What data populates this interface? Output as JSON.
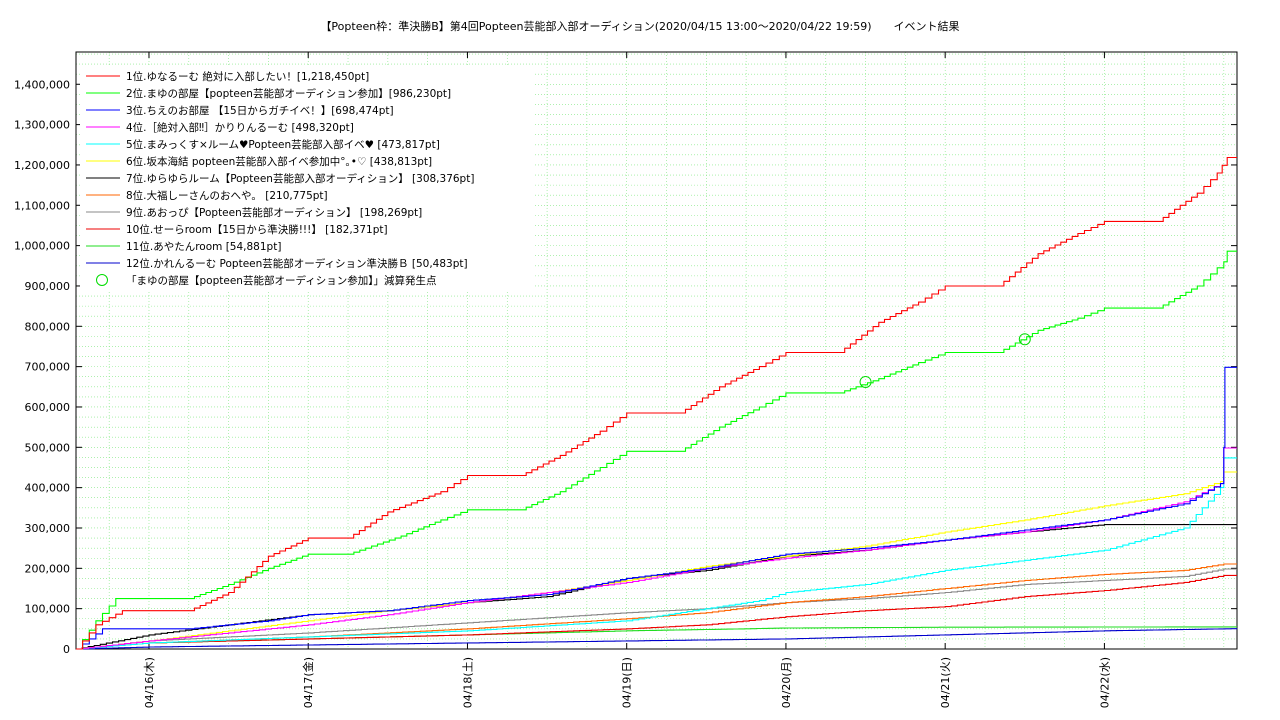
{
  "chart_data": {
    "type": "line",
    "title": "【Popteen枠：準決勝B】第4回Popteen芸能部入部オーディション(2020/04/15 13:00〜2020/04/22 19:59)　　イベント結果",
    "xlabel": "",
    "ylabel": "",
    "x_range": [
      "2020-04-15 13:00",
      "2020-04-22 19:59"
    ],
    "x_ticks": [
      {
        "t": "2020-04-16 00:00",
        "label": "04/16(木)"
      },
      {
        "t": "2020-04-17 00:00",
        "label": "04/17(金)"
      },
      {
        "t": "2020-04-18 00:00",
        "label": "04/18(土)"
      },
      {
        "t": "2020-04-19 00:00",
        "label": "04/19(日)"
      },
      {
        "t": "2020-04-20 00:00",
        "label": "04/20(月)"
      },
      {
        "t": "2020-04-21 00:00",
        "label": "04/21(火)"
      },
      {
        "t": "2020-04-22 00:00",
        "label": "04/22(水)"
      }
    ],
    "ylim": [
      0,
      1480000
    ],
    "y_ticks": [
      0,
      100000,
      200000,
      300000,
      400000,
      500000,
      600000,
      700000,
      800000,
      900000,
      1000000,
      1100000,
      1200000,
      1300000,
      1400000
    ],
    "y_tick_labels": [
      "0",
      "100,000",
      "200,000",
      "300,000",
      "400,000",
      "500,000",
      "600,000",
      "700,000",
      "800,000",
      "900,000",
      "1,000,000",
      "1,100,000",
      "1,200,000",
      "1,300,000",
      "1,400,000"
    ],
    "grid": true,
    "legend_position": "top-left",
    "series": [
      {
        "name": "1位.ゆなるーむ 絶対に入部したい！[1,218,450pt]",
        "color": "#ff0000",
        "points": [
          [
            "2020-04-15 13:00",
            0
          ],
          [
            "2020-04-15 16:00",
            60000
          ],
          [
            "2020-04-15 20:00",
            95000
          ],
          [
            "2020-04-16 06:00",
            95000
          ],
          [
            "2020-04-16 12:00",
            140000
          ],
          [
            "2020-04-16 18:00",
            230000
          ],
          [
            "2020-04-17 00:00",
            275000
          ],
          [
            "2020-04-17 06:00",
            275000
          ],
          [
            "2020-04-17 12:00",
            340000
          ],
          [
            "2020-04-17 20:00",
            390000
          ],
          [
            "2020-04-18 00:00",
            430000
          ],
          [
            "2020-04-18 08:00",
            430000
          ],
          [
            "2020-04-18 14:00",
            480000
          ],
          [
            "2020-04-18 20:00",
            540000
          ],
          [
            "2020-04-19 00:00",
            585000
          ],
          [
            "2020-04-19 08:00",
            585000
          ],
          [
            "2020-04-19 14:00",
            650000
          ],
          [
            "2020-04-19 20:00",
            700000
          ],
          [
            "2020-04-20 00:00",
            735000
          ],
          [
            "2020-04-20 08:00",
            735000
          ],
          [
            "2020-04-20 14:00",
            810000
          ],
          [
            "2020-04-20 20:00",
            860000
          ],
          [
            "2020-04-21 00:00",
            900000
          ],
          [
            "2020-04-21 08:00",
            900000
          ],
          [
            "2020-04-21 14:00",
            980000
          ],
          [
            "2020-04-21 20:00",
            1030000
          ],
          [
            "2020-04-22 00:00",
            1060000
          ],
          [
            "2020-04-22 08:00",
            1060000
          ],
          [
            "2020-04-22 14:00",
            1130000
          ],
          [
            "2020-04-22 17:00",
            1180000
          ],
          [
            "2020-04-22 18:30",
            1218450
          ],
          [
            "2020-04-22 19:59",
            1218450
          ]
        ]
      },
      {
        "name": "2位.まゆの部屋【popteen芸能部オーディション参加】[986,230pt]",
        "color": "#00ff00",
        "points": [
          [
            "2020-04-15 13:00",
            0
          ],
          [
            "2020-04-15 16:00",
            70000
          ],
          [
            "2020-04-15 19:00",
            125000
          ],
          [
            "2020-04-16 06:00",
            125000
          ],
          [
            "2020-04-16 12:00",
            160000
          ],
          [
            "2020-04-16 18:00",
            200000
          ],
          [
            "2020-04-17 00:00",
            235000
          ],
          [
            "2020-04-17 06:00",
            235000
          ],
          [
            "2020-04-17 14:00",
            280000
          ],
          [
            "2020-04-17 20:00",
            320000
          ],
          [
            "2020-04-18 00:00",
            345000
          ],
          [
            "2020-04-18 08:00",
            345000
          ],
          [
            "2020-04-18 14:00",
            390000
          ],
          [
            "2020-04-18 20:00",
            450000
          ],
          [
            "2020-04-19 00:00",
            490000
          ],
          [
            "2020-04-19 08:00",
            490000
          ],
          [
            "2020-04-19 14:00",
            550000
          ],
          [
            "2020-04-19 20:00",
            600000
          ],
          [
            "2020-04-20 00:00",
            635000
          ],
          [
            "2020-04-20 08:00",
            635000
          ],
          [
            "2020-04-20 14:00",
            670000
          ],
          [
            "2020-04-20 20:00",
            710000
          ],
          [
            "2020-04-21 00:00",
            735000
          ],
          [
            "2020-04-21 08:00",
            735000
          ],
          [
            "2020-04-21 14:00",
            790000
          ],
          [
            "2020-04-21 20:00",
            820000
          ],
          [
            "2020-04-22 00:00",
            845000
          ],
          [
            "2020-04-22 08:00",
            845000
          ],
          [
            "2020-04-22 14:00",
            900000
          ],
          [
            "2020-04-22 18:00",
            960000
          ],
          [
            "2020-04-22 18:30",
            986230
          ],
          [
            "2020-04-22 19:59",
            986230
          ]
        ]
      },
      {
        "name": "3位.ちえのお部屋 【15日からガチイベ！】[698,474pt]",
        "color": "#0000ff",
        "points": [
          [
            "2020-04-15 13:00",
            0
          ],
          [
            "2020-04-15 17:00",
            50000
          ],
          [
            "2020-04-16 06:00",
            50000
          ],
          [
            "2020-04-16 18:00",
            70000
          ],
          [
            "2020-04-17 00:00",
            85000
          ],
          [
            "2020-04-17 12:00",
            95000
          ],
          [
            "2020-04-18 00:00",
            120000
          ],
          [
            "2020-04-18 12:00",
            135000
          ],
          [
            "2020-04-19 00:00",
            175000
          ],
          [
            "2020-04-19 12:00",
            200000
          ],
          [
            "2020-04-20 00:00",
            235000
          ],
          [
            "2020-04-20 12:00",
            250000
          ],
          [
            "2020-04-21 00:00",
            270000
          ],
          [
            "2020-04-21 12:00",
            295000
          ],
          [
            "2020-04-22 00:00",
            320000
          ],
          [
            "2020-04-22 12:00",
            360000
          ],
          [
            "2020-04-22 17:30",
            410000
          ],
          [
            "2020-04-22 18:00",
            500000
          ],
          [
            "2020-04-22 18:10",
            698474
          ],
          [
            "2020-04-22 19:59",
            698474
          ]
        ]
      },
      {
        "name": "4位.［絶対入部‼］かりりんるーむ [498,320pt]",
        "color": "#ff00ff",
        "points": [
          [
            "2020-04-15 13:00",
            0
          ],
          [
            "2020-04-16 00:00",
            20000
          ],
          [
            "2020-04-16 12:00",
            40000
          ],
          [
            "2020-04-17 00:00",
            60000
          ],
          [
            "2020-04-17 12:00",
            85000
          ],
          [
            "2020-04-18 00:00",
            115000
          ],
          [
            "2020-04-18 12:00",
            140000
          ],
          [
            "2020-04-19 00:00",
            165000
          ],
          [
            "2020-04-19 12:00",
            200000
          ],
          [
            "2020-04-20 00:00",
            225000
          ],
          [
            "2020-04-20 12:00",
            245000
          ],
          [
            "2020-04-21 00:00",
            270000
          ],
          [
            "2020-04-21 12:00",
            290000
          ],
          [
            "2020-04-22 00:00",
            320000
          ],
          [
            "2020-04-22 12:00",
            365000
          ],
          [
            "2020-04-22 17:30",
            410000
          ],
          [
            "2020-04-22 18:00",
            498320
          ],
          [
            "2020-04-22 19:59",
            498320
          ]
        ]
      },
      {
        "name": "5位.まみっくす×ルーム♥Popteen芸能部入部イベ♥ [473,817pt]",
        "color": "#00ffff",
        "points": [
          [
            "2020-04-15 13:00",
            0
          ],
          [
            "2020-04-16 00:00",
            15000
          ],
          [
            "2020-04-17 00:00",
            30000
          ],
          [
            "2020-04-18 00:00",
            45000
          ],
          [
            "2020-04-19 00:00",
            70000
          ],
          [
            "2020-04-19 20:00",
            120000
          ],
          [
            "2020-04-20 00:00",
            140000
          ],
          [
            "2020-04-20 12:00",
            160000
          ],
          [
            "2020-04-21 00:00",
            195000
          ],
          [
            "2020-04-21 12:00",
            220000
          ],
          [
            "2020-04-22 00:00",
            245000
          ],
          [
            "2020-04-22 12:00",
            300000
          ],
          [
            "2020-04-22 17:30",
            400000
          ],
          [
            "2020-04-22 18:00",
            473817
          ],
          [
            "2020-04-22 19:59",
            473817
          ]
        ]
      },
      {
        "name": "6位.坂本海結 popteen芸能部入部イベ参加中°｡•♡ [438,813pt]",
        "color": "#ffff00",
        "points": [
          [
            "2020-04-15 13:00",
            0
          ],
          [
            "2020-04-16 00:00",
            20000
          ],
          [
            "2020-04-16 12:00",
            45000
          ],
          [
            "2020-04-17 00:00",
            70000
          ],
          [
            "2020-04-17 12:00",
            95000
          ],
          [
            "2020-04-18 00:00",
            115000
          ],
          [
            "2020-04-18 12:00",
            140000
          ],
          [
            "2020-04-19 00:00",
            170000
          ],
          [
            "2020-04-19 12:00",
            205000
          ],
          [
            "2020-04-20 00:00",
            230000
          ],
          [
            "2020-04-20 12:00",
            255000
          ],
          [
            "2020-04-21 00:00",
            290000
          ],
          [
            "2020-04-21 12:00",
            320000
          ],
          [
            "2020-04-22 00:00",
            355000
          ],
          [
            "2020-04-22 12:00",
            385000
          ],
          [
            "2020-04-22 17:30",
            415000
          ],
          [
            "2020-04-22 18:00",
            438813
          ],
          [
            "2020-04-22 19:59",
            438813
          ]
        ]
      },
      {
        "name": "7位.ゆらゆらルーム【Popteen芸能部入部オーディション】 [308,376pt]",
        "color": "#000000",
        "points": [
          [
            "2020-04-15 13:00",
            0
          ],
          [
            "2020-04-16 00:00",
            35000
          ],
          [
            "2020-04-16 12:00",
            60000
          ],
          [
            "2020-04-17 00:00",
            85000
          ],
          [
            "2020-04-17 12:00",
            95000
          ],
          [
            "2020-04-18 00:00",
            115000
          ],
          [
            "2020-04-18 12:00",
            130000
          ],
          [
            "2020-04-19 00:00",
            175000
          ],
          [
            "2020-04-19 12:00",
            195000
          ],
          [
            "2020-04-20 00:00",
            230000
          ],
          [
            "2020-04-20 12:00",
            245000
          ],
          [
            "2020-04-21 00:00",
            270000
          ],
          [
            "2020-04-21 12:00",
            290000
          ],
          [
            "2020-04-22 00:00",
            308376
          ],
          [
            "2020-04-22 19:59",
            308376
          ]
        ]
      },
      {
        "name": "8位.大福しーさんのおへや。 [210,775pt]",
        "color": "#ff6600",
        "points": [
          [
            "2020-04-15 13:00",
            0
          ],
          [
            "2020-04-16 00:00",
            15000
          ],
          [
            "2020-04-17 00:00",
            30000
          ],
          [
            "2020-04-18 00:00",
            50000
          ],
          [
            "2020-04-19 00:00",
            75000
          ],
          [
            "2020-04-19 12:00",
            90000
          ],
          [
            "2020-04-20 00:00",
            115000
          ],
          [
            "2020-04-20 12:00",
            130000
          ],
          [
            "2020-04-21 00:00",
            150000
          ],
          [
            "2020-04-21 12:00",
            170000
          ],
          [
            "2020-04-22 00:00",
            185000
          ],
          [
            "2020-04-22 12:00",
            195000
          ],
          [
            "2020-04-22 18:00",
            210775
          ],
          [
            "2020-04-22 19:59",
            210775
          ]
        ]
      },
      {
        "name": "9位.あおっぴ【Popteen芸能部オーディション】 [198,269pt]",
        "color": "#888888",
        "points": [
          [
            "2020-04-15 13:00",
            0
          ],
          [
            "2020-04-16 00:00",
            20000
          ],
          [
            "2020-04-17 00:00",
            40000
          ],
          [
            "2020-04-18 00:00",
            65000
          ],
          [
            "2020-04-19 00:00",
            90000
          ],
          [
            "2020-04-19 12:00",
            100000
          ],
          [
            "2020-04-20 00:00",
            115000
          ],
          [
            "2020-04-20 12:00",
            125000
          ],
          [
            "2020-04-21 00:00",
            140000
          ],
          [
            "2020-04-21 12:00",
            160000
          ],
          [
            "2020-04-22 00:00",
            170000
          ],
          [
            "2020-04-22 12:00",
            180000
          ],
          [
            "2020-04-22 18:00",
            198269
          ],
          [
            "2020-04-22 19:59",
            198269
          ]
        ]
      },
      {
        "name": "10位.せーらroom【15日から準決勝!!!】 [182,371pt]",
        "color": "#ee0000",
        "points": [
          [
            "2020-04-15 13:00",
            0
          ],
          [
            "2020-04-16 00:00",
            15000
          ],
          [
            "2020-04-17 00:00",
            25000
          ],
          [
            "2020-04-18 00:00",
            35000
          ],
          [
            "2020-04-19 00:00",
            50000
          ],
          [
            "2020-04-19 12:00",
            60000
          ],
          [
            "2020-04-20 00:00",
            80000
          ],
          [
            "2020-04-20 12:00",
            95000
          ],
          [
            "2020-04-21 00:00",
            105000
          ],
          [
            "2020-04-21 12:00",
            130000
          ],
          [
            "2020-04-22 00:00",
            145000
          ],
          [
            "2020-04-22 12:00",
            165000
          ],
          [
            "2020-04-22 18:00",
            182371
          ],
          [
            "2020-04-22 19:59",
            182371
          ]
        ]
      },
      {
        "name": "11位.あやたんroom [54,881pt]",
        "color": "#22dd22",
        "points": [
          [
            "2020-04-15 13:00",
            0
          ],
          [
            "2020-04-16 00:00",
            15000
          ],
          [
            "2020-04-17 00:00",
            25000
          ],
          [
            "2020-04-18 00:00",
            35000
          ],
          [
            "2020-04-19 00:00",
            45000
          ],
          [
            "2020-04-20 00:00",
            52000
          ],
          [
            "2020-04-21 00:00",
            54000
          ],
          [
            "2020-04-22 19:59",
            54881
          ]
        ]
      },
      {
        "name": "12位.かれんるーむ Popteen芸能部オーディション準決勝Ｂ [50,483pt]",
        "color": "#0000cc",
        "points": [
          [
            "2020-04-15 13:00",
            0
          ],
          [
            "2020-04-16 00:00",
            5000
          ],
          [
            "2020-04-17 00:00",
            10000
          ],
          [
            "2020-04-18 00:00",
            15000
          ],
          [
            "2020-04-19 00:00",
            20000
          ],
          [
            "2020-04-20 00:00",
            25000
          ],
          [
            "2020-04-21 00:00",
            35000
          ],
          [
            "2020-04-22 00:00",
            45000
          ],
          [
            "2020-04-22 19:59",
            50483
          ]
        ]
      }
    ],
    "markers": {
      "label": "「まゆの部屋【popteen芸能部オーディション参加】」減算発生点",
      "color": "#00dd00",
      "points": [
        [
          "2020-04-20 12:00",
          662000
        ],
        [
          "2020-04-21 12:00",
          768000
        ]
      ]
    }
  }
}
